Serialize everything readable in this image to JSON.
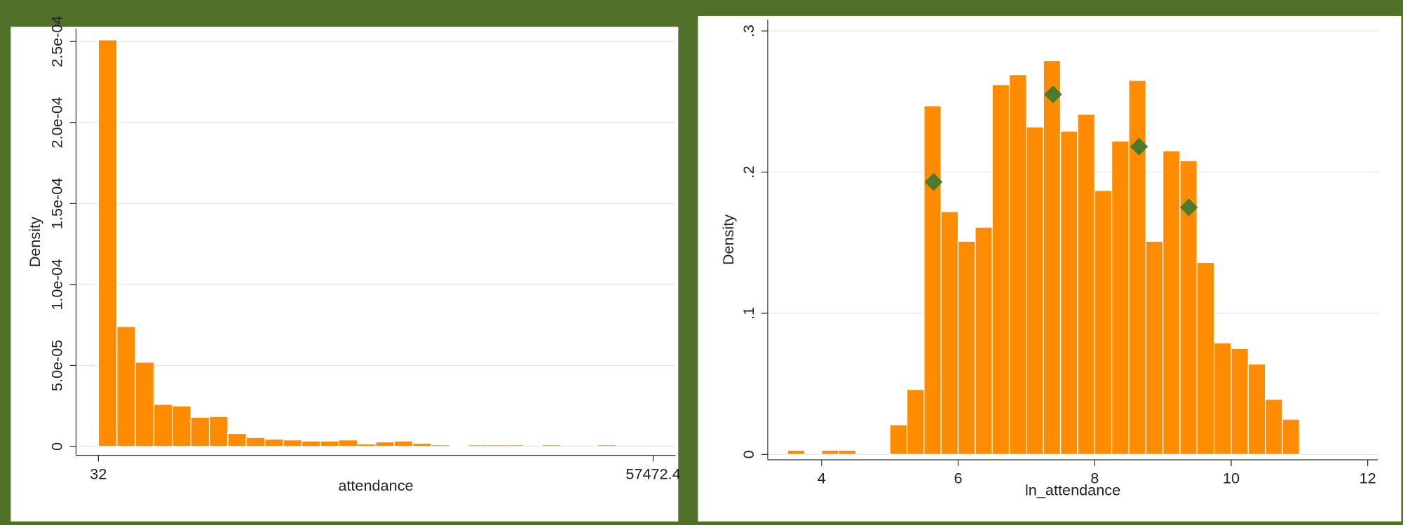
{
  "chart_data": [
    {
      "type": "histogram",
      "xlabel": "attendance",
      "ylabel": "Density",
      "color": "#ff8c00",
      "grid": true,
      "bins": [
        32,
        1946.68,
        3861.36,
        5776.04,
        7690.72,
        9605.4,
        11520.08,
        13434.76,
        15349.44,
        17264.12,
        19178.8,
        21093.48,
        23008.16,
        24922.84,
        26837.52,
        28752.2,
        30666.88,
        32581.56,
        34496.24,
        36410.92,
        38325.6,
        40240.28,
        42154.96,
        44069.64,
        45984.32,
        47899,
        49813.68,
        51728.36,
        53643.04,
        55557.72,
        57472.4
      ],
      "values": [
        0.000251,
        7.4e-05,
        5.2e-05,
        2.6e-05,
        2.5e-05,
        1.8e-05,
        1.85e-05,
        8e-06,
        5.5e-06,
        4.5e-06,
        4e-06,
        3.3e-06,
        3.3e-06,
        4e-06,
        1.5e-06,
        2.8e-06,
        3.3e-06,
        2e-06,
        1e-06,
        5e-07,
        1e-06,
        1e-06,
        1e-06,
        0,
        1e-06,
        0,
        0,
        1e-06,
        0,
        0
      ],
      "xlim": [
        -2284,
        59788
      ],
      "ylim": [
        -5.5e-06,
        0.000258
      ],
      "xticks": [
        32,
        57472.4
      ],
      "yticks": [
        0,
        {
          "value": 5e-05,
          "label": "5.0e-05"
        },
        {
          "value": 0.0001,
          "label": "1.0e-04"
        },
        {
          "value": 0.00015,
          "label": "1.5e-04"
        },
        {
          "value": 0.0002,
          "label": "2.0e-04"
        },
        {
          "value": 0.00025,
          "label": "2.5e-04"
        }
      ]
    },
    {
      "type": "histogram",
      "xlabel": "ln_attendance",
      "ylabel": "Density",
      "color": "#ff8c00",
      "grid": true,
      "bins": [
        3.5,
        3.75,
        4,
        4.25,
        4.5,
        4.75,
        5,
        5.25,
        5.5,
        5.75,
        6,
        6.25,
        6.5,
        6.75,
        7,
        7.25,
        7.5,
        7.75,
        8,
        8.25,
        8.5,
        8.75,
        9,
        9.25,
        9.5,
        9.75,
        10,
        10.25,
        10.5,
        10.75,
        11
      ],
      "values": [
        0.003,
        0,
        0.003,
        0.003,
        0,
        0,
        0.021,
        0.046,
        0.247,
        0.172,
        0.151,
        0.161,
        0.262,
        0.269,
        0.232,
        0.279,
        0.229,
        0.241,
        0.187,
        0.222,
        0.265,
        0.151,
        0.215,
        0.208,
        0.136,
        0.079,
        0.075,
        0.064,
        0.039,
        0.025
      ],
      "points": {
        "color": "#4e7a2e",
        "x": [
          5.64,
          7.39,
          8.65,
          9.38
        ],
        "y": [
          0.193,
          0.255,
          0.218,
          0.175
        ]
      },
      "xlim": [
        3.21,
        12.15
      ],
      "ylim": [
        -0.0038,
        0.308
      ],
      "xticks": [
        4,
        6,
        8,
        10,
        12
      ],
      "yticks": [
        0,
        {
          "value": 0.1,
          "label": ".1"
        },
        {
          "value": 0.2,
          "label": ".2"
        },
        {
          "value": 0.3,
          "label": ".3"
        }
      ]
    }
  ]
}
